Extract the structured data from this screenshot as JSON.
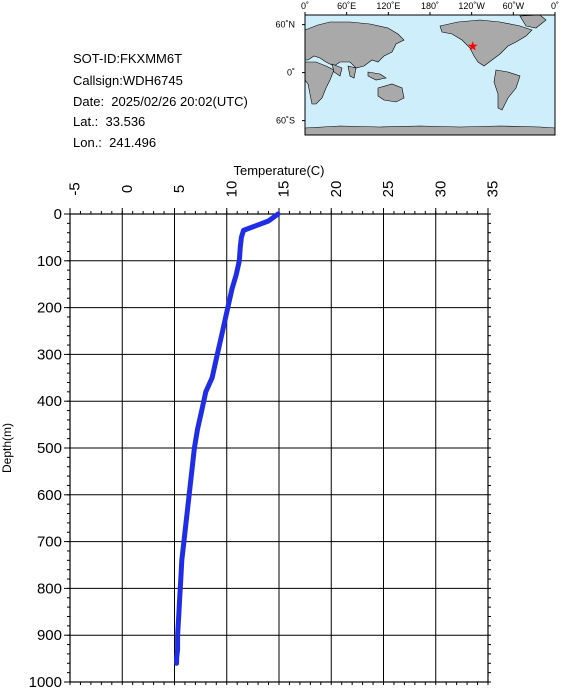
{
  "info": {
    "sot_id": "SOT-ID:FKXMM6T",
    "callsign": "Callsign:WDH6745",
    "date": "Date:  2025/02/26 20:02(UTC)",
    "lat": "Lat.:  33.536",
    "lon": "Lon.:  241.496"
  },
  "map": {
    "lon_labels": [
      "0˚",
      "60˚E",
      "120˚E",
      "180˚",
      "120˚W",
      "60˚W",
      "0˚"
    ],
    "lat_labels": [
      "60˚N",
      "0˚",
      "60˚S"
    ],
    "ocean_color": "#cdeefa",
    "land_color": "#a9a9a9",
    "marker": {
      "lat": 33.536,
      "lon": 241.496,
      "color": "#ff0000",
      "icon": "star-icon"
    }
  },
  "chart_data": {
    "type": "line",
    "title": "",
    "xlabel": "Temperature(C)",
    "ylabel": "Depth(m)",
    "xlim": [
      -5,
      35
    ],
    "ylim": [
      0,
      1000
    ],
    "y_inverted": true,
    "x_axis_position": "top",
    "x_ticks": [
      "-5",
      "0",
      "5",
      "10",
      "15",
      "20",
      "25",
      "30",
      "35"
    ],
    "y_ticks": [
      "0",
      "100",
      "200",
      "300",
      "400",
      "500",
      "600",
      "700",
      "800",
      "900",
      "1000"
    ],
    "grid": true,
    "series": [
      {
        "color": "#1f2ee6",
        "x": [
          14.9,
          14.0,
          12.8,
          11.6,
          11.4,
          11.3,
          11.2,
          10.9,
          10.5,
          10.1,
          9.6,
          9.1,
          8.6,
          8.0,
          7.6,
          7.2,
          6.9,
          6.7,
          6.5,
          6.3,
          6.1,
          5.9,
          5.7,
          5.6,
          5.5,
          5.4,
          5.3,
          5.3,
          5.2,
          5.2
        ],
        "y": [
          0,
          15,
          25,
          35,
          50,
          70,
          100,
          130,
          160,
          200,
          250,
          300,
          350,
          380,
          420,
          460,
          500,
          540,
          580,
          620,
          660,
          700,
          740,
          780,
          820,
          860,
          900,
          930,
          950,
          960
        ]
      }
    ]
  }
}
